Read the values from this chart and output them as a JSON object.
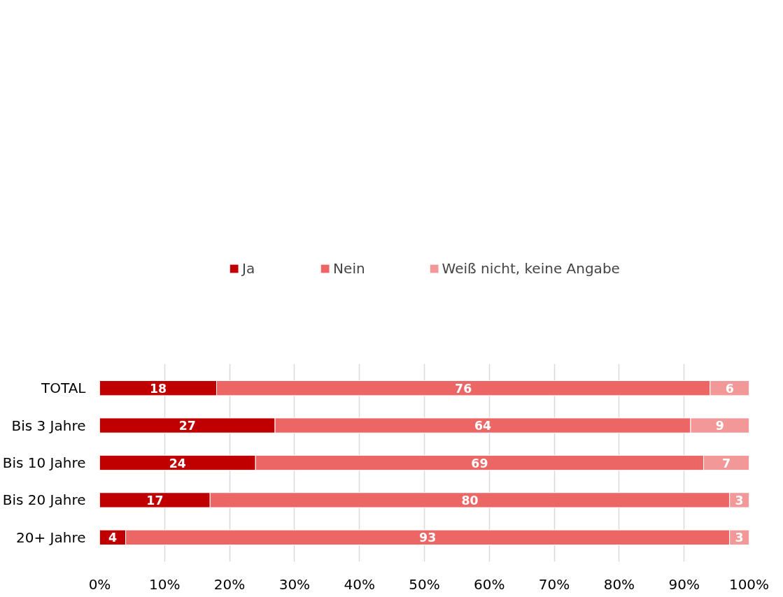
{
  "chart_data": {
    "type": "bar",
    "orientation": "horizontal",
    "stacked": true,
    "data_labels": true,
    "grid": "x",
    "legend": "top",
    "categories": [
      "TOTAL",
      "Bis 3 Jahre",
      "Bis 10 Jahre",
      "Bis 20 Jahre",
      "20+ Jahre"
    ],
    "series": [
      {
        "name": "Ja",
        "color": "#c00000",
        "values": [
          18,
          27,
          24,
          17,
          4
        ]
      },
      {
        "name": "Nein",
        "color": "#ec6666",
        "values": [
          76,
          64,
          69,
          80,
          93
        ]
      },
      {
        "name": "Weiß nicht, keine Angabe",
        "color": "#f29898",
        "values": [
          6,
          9,
          7,
          3,
          3
        ]
      }
    ],
    "xlim": [
      0,
      100
    ],
    "xticks": [
      {
        "value": 0,
        "label": "0%"
      },
      {
        "value": 10,
        "label": "10%"
      },
      {
        "value": 20,
        "label": "20%"
      },
      {
        "value": 30,
        "label": "30%"
      },
      {
        "value": 40,
        "label": "40%"
      },
      {
        "value": 50,
        "label": "50%"
      },
      {
        "value": 60,
        "label": "60%"
      },
      {
        "value": 70,
        "label": "70%"
      },
      {
        "value": 80,
        "label": "80%"
      },
      {
        "value": 90,
        "label": "90%"
      },
      {
        "value": 100,
        "label": "100%"
      }
    ]
  }
}
